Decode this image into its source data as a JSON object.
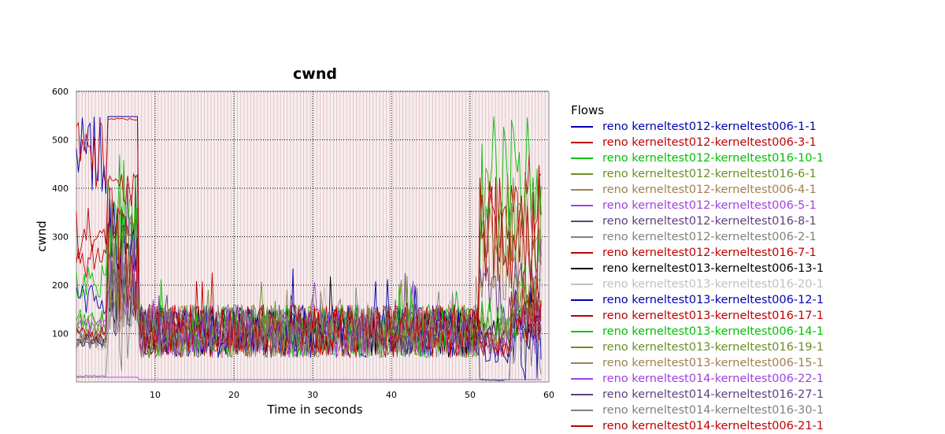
{
  "chart_data": {
    "type": "line",
    "title": "cwnd",
    "xlabel": "Time in seconds",
    "ylabel": "cwnd",
    "xlim": [
      0,
      60
    ],
    "ylim": [
      0,
      600
    ],
    "x_ticks": [
      "10",
      "20",
      "30",
      "40",
      "50",
      "60"
    ],
    "y_ticks": [
      "100",
      "200",
      "300",
      "400",
      "500",
      "600"
    ],
    "grid": true,
    "legend_title": "Flows",
    "legend_position": "right",
    "series": [
      {
        "name": "reno kerneltest012-kerneltest006-1-1",
        "color": "#0000b0",
        "start": 548,
        "end": 5,
        "peak": 548
      },
      {
        "name": "reno kerneltest012-kerneltest006-3-1",
        "color": "#c00000",
        "start": 540,
        "end": 360,
        "peak": 545
      },
      {
        "name": "reno kerneltest012-kerneltest016-10-1",
        "color": "#00c000",
        "start": 150,
        "end": 470,
        "peak": 470
      },
      {
        "name": "reno kerneltest012-kerneltest016-6-1",
        "color": "#6b8e23",
        "start": 120,
        "end": 380,
        "peak": 400
      },
      {
        "name": "reno kerneltest012-kerneltest006-4-1",
        "color": "#a08050",
        "start": 100,
        "end": 300,
        "peak": 360
      },
      {
        "name": "reno kerneltest012-kerneltest006-5-1",
        "color": "#a040e0",
        "start": 10,
        "end": 5,
        "peak": 10
      },
      {
        "name": "reno kerneltest012-kerneltest016-8-1",
        "color": "#604080",
        "start": 110,
        "end": 200,
        "peak": 410
      },
      {
        "name": "reno kerneltest012-kerneltest006-2-1",
        "color": "#808080",
        "start": 15,
        "end": 5,
        "peak": 400
      },
      {
        "name": "reno kerneltest012-kerneltest016-7-1",
        "color": "#c00000",
        "start": 300,
        "end": 360,
        "peak": 360
      },
      {
        "name": "reno kerneltest013-kerneltest006-13-1",
        "color": "#000000",
        "start": 100,
        "end": 120,
        "peak": 250
      },
      {
        "name": "reno kerneltest013-kerneltest016-20-1",
        "color": "#c0c0c0",
        "start": 90,
        "end": 110,
        "peak": 200
      },
      {
        "name": "reno kerneltest013-kerneltest006-12-1",
        "color": "#0000b0",
        "start": 200,
        "end": 80,
        "peak": 380
      },
      {
        "name": "reno kerneltest013-kerneltest016-17-1",
        "color": "#c00000",
        "start": 360,
        "end": 100,
        "peak": 430
      },
      {
        "name": "reno kerneltest013-kerneltest006-14-1",
        "color": "#00c000",
        "start": 250,
        "end": 150,
        "peak": 380
      },
      {
        "name": "reno kerneltest013-kerneltest016-19-1",
        "color": "#6b8e23",
        "start": 140,
        "end": 130,
        "peak": 350
      },
      {
        "name": "reno kerneltest013-kerneltest006-15-1",
        "color": "#a08050",
        "start": 110,
        "end": 120,
        "peak": 300
      },
      {
        "name": "reno kerneltest014-kerneltest006-22-1",
        "color": "#a040e0",
        "start": 130,
        "end": 100,
        "peak": 290
      },
      {
        "name": "reno kerneltest014-kerneltest016-27-1",
        "color": "#604080",
        "start": 90,
        "end": 100,
        "peak": 260
      },
      {
        "name": "reno kerneltest014-kerneltest016-30-1",
        "color": "#808080",
        "start": 100,
        "end": 110,
        "peak": 280
      },
      {
        "name": "reno kerneltest014-kerneltest006-21-1",
        "color": "#c00000",
        "start": 120,
        "end": 90,
        "peak": 420
      }
    ]
  }
}
